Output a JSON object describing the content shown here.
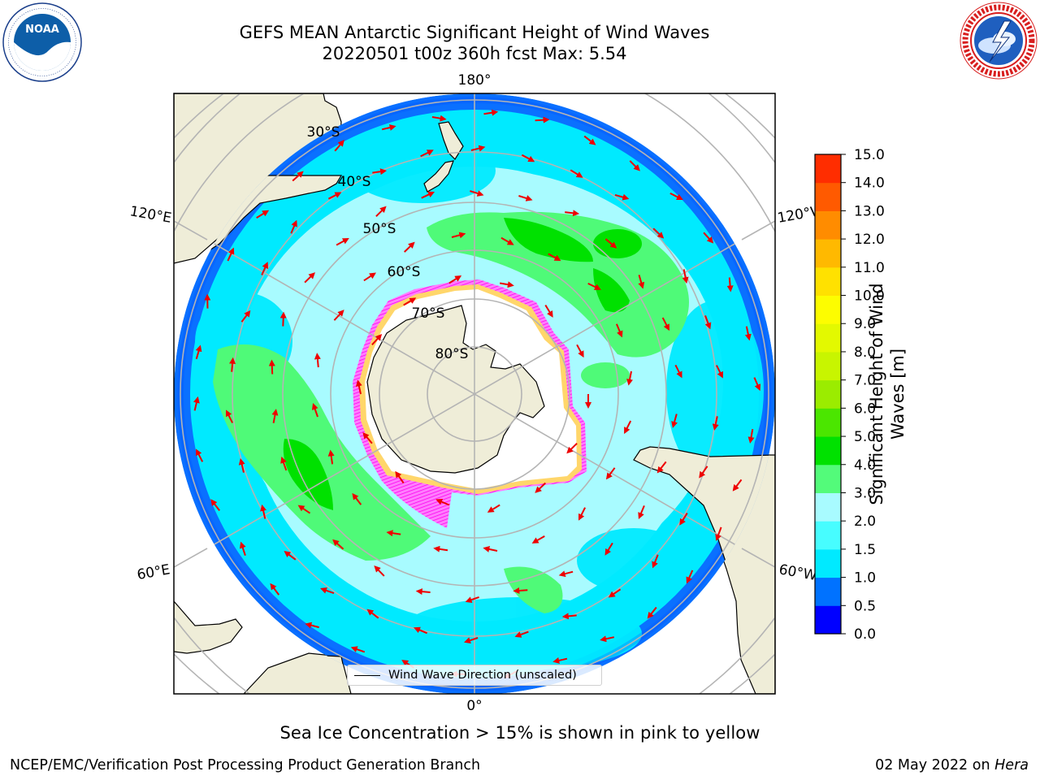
{
  "title": {
    "line1": "GEFS MEAN Antarctic Significant Height of Wind Waves",
    "line2": "20220501 t00z 360h fcst   Max: 5.54"
  },
  "logos": {
    "left": "noaa-logo",
    "right": "nws-logo"
  },
  "map": {
    "projection": "south-polar-stereographic",
    "lon_labels": {
      "top": "180°",
      "bottom": "0°",
      "upper_left": "120°E",
      "upper_right": "120°W",
      "lower_left": "60°E",
      "lower_right": "60°W"
    },
    "lat_labels": [
      "30°S",
      "40°S",
      "50°S",
      "60°S",
      "70°S",
      "80°S"
    ],
    "legend_label": "Wind Wave Direction (unscaled)",
    "colors": {
      "land": "#efedd8",
      "ice": "#ffffff",
      "ocean_low": "#00eeff",
      "ocean_mid": "#a8fbff",
      "ocean_high": "#4ffa78",
      "ocean_peak": "#00e100",
      "coast_blue": "#0a70ff",
      "edge_blue": "#0048ff",
      "ice_edge": "#ff30ff",
      "arrow": "#ee0000"
    }
  },
  "colorbar": {
    "label_line1": "Significant Height of Wind",
    "label_line2": "Waves [m]",
    "ticks": [
      "0.0",
      "0.5",
      "1.0",
      "1.5",
      "2.0",
      "3.0",
      "4.0",
      "5.0",
      "6.0",
      "7.0",
      "8.0",
      "9.0",
      "10.0",
      "11.0",
      "12.0",
      "13.0",
      "14.0",
      "15.0"
    ],
    "colors": [
      "#0000ff",
      "#0072ff",
      "#00eaff",
      "#47fdff",
      "#a8fbff",
      "#53fb7a",
      "#00e100",
      "#4be600",
      "#9bec00",
      "#c8f500",
      "#e3f900",
      "#fdfd00",
      "#ffe100",
      "#ffb900",
      "#ff8c00",
      "#ff5a00",
      "#ff2d00"
    ]
  },
  "note": "Sea Ice Concentration > 15% is shown in pink to yellow",
  "footer": {
    "left": "NCEP/EMC/Verification Post Processing Product Generation Branch",
    "right_date": "02 May 2022 on",
    "right_machine": "Hera"
  }
}
